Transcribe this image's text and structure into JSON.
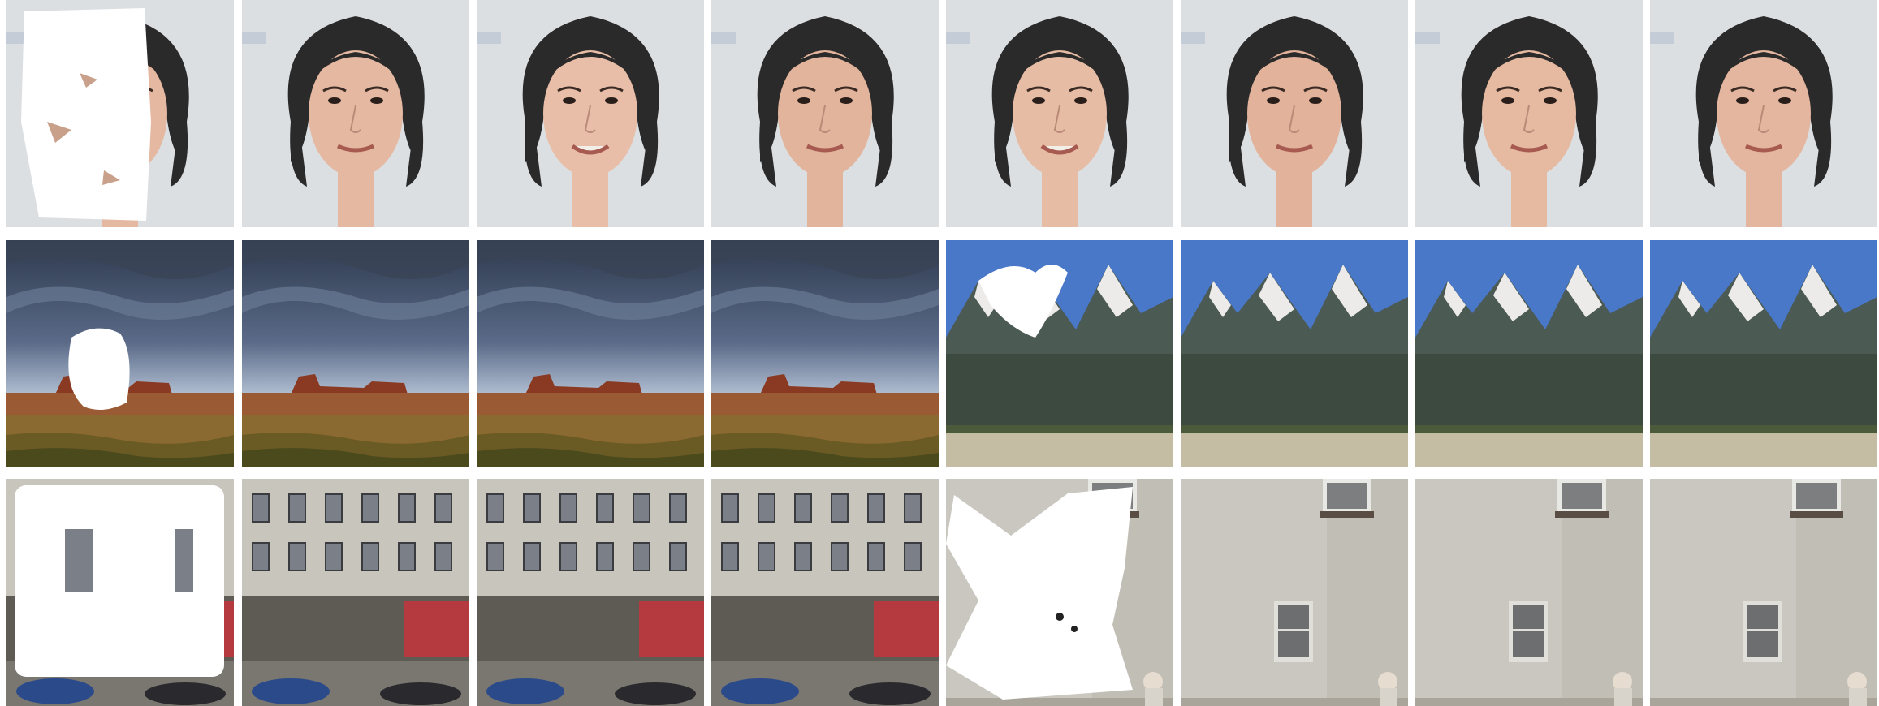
{
  "figure": {
    "rows": [
      {
        "scene": "face",
        "tiles": [
          {
            "kind": "masked",
            "mask": "face-blob"
          },
          {
            "kind": "result",
            "variant": "a"
          },
          {
            "kind": "result",
            "variant": "b"
          },
          {
            "kind": "result",
            "variant": "c"
          },
          {
            "kind": "result",
            "variant": "d"
          },
          {
            "kind": "result",
            "variant": "e"
          },
          {
            "kind": "result",
            "variant": "f"
          },
          {
            "kind": "result",
            "variant": "g"
          }
        ]
      },
      {
        "scene": "desert-mountain",
        "tiles": [
          {
            "kind": "masked",
            "scene": "desert",
            "mask": "desert-blob"
          },
          {
            "kind": "result",
            "scene": "desert"
          },
          {
            "kind": "result",
            "scene": "desert"
          },
          {
            "kind": "result",
            "scene": "desert"
          },
          {
            "kind": "masked",
            "scene": "mountain",
            "mask": "mountain-blob"
          },
          {
            "kind": "result",
            "scene": "mountain"
          },
          {
            "kind": "result",
            "scene": "mountain"
          },
          {
            "kind": "result",
            "scene": "mountain"
          }
        ]
      },
      {
        "scene": "street-wall",
        "tiles": [
          {
            "kind": "masked",
            "scene": "street",
            "mask": "street-box"
          },
          {
            "kind": "result",
            "scene": "street"
          },
          {
            "kind": "result",
            "scene": "street"
          },
          {
            "kind": "result",
            "scene": "street"
          },
          {
            "kind": "masked",
            "scene": "wall",
            "mask": "wall-blob"
          },
          {
            "kind": "result",
            "scene": "wall"
          },
          {
            "kind": "result",
            "scene": "wall"
          },
          {
            "kind": "result",
            "scene": "wall"
          }
        ]
      }
    ]
  }
}
